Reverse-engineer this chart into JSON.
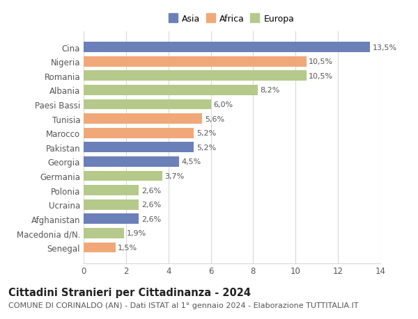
{
  "categories": [
    "Cina",
    "Nigeria",
    "Romania",
    "Albania",
    "Paesi Bassi",
    "Tunisia",
    "Marocco",
    "Pakistan",
    "Georgia",
    "Germania",
    "Polonia",
    "Ucraina",
    "Afghanistan",
    "Macedonia d/N.",
    "Senegal"
  ],
  "values": [
    13.5,
    10.5,
    10.5,
    8.2,
    6.0,
    5.6,
    5.2,
    5.2,
    4.5,
    3.7,
    2.6,
    2.6,
    2.6,
    1.9,
    1.5
  ],
  "labels": [
    "13,5%",
    "10,5%",
    "10,5%",
    "8,2%",
    "6,0%",
    "5,6%",
    "5,2%",
    "5,2%",
    "4,5%",
    "3,7%",
    "2,6%",
    "2,6%",
    "2,6%",
    "1,9%",
    "1,5%"
  ],
  "colors": [
    "#6b80b8",
    "#f0a878",
    "#b5c98a",
    "#b5c98a",
    "#b5c98a",
    "#f0a878",
    "#f0a878",
    "#6b80b8",
    "#6b80b8",
    "#b5c98a",
    "#b5c98a",
    "#b5c98a",
    "#6b80b8",
    "#b5c98a",
    "#f0a878"
  ],
  "legend_labels": [
    "Asia",
    "Africa",
    "Europa"
  ],
  "legend_colors": [
    "#6b80b8",
    "#f0a878",
    "#b5c98a"
  ],
  "title": "Cittadini Stranieri per Cittadinanza - 2024",
  "subtitle": "COMUNE DI CORINALDO (AN) - Dati ISTAT al 1° gennaio 2024 - Elaborazione TUTTITALIA.IT",
  "xlim": [
    0,
    14
  ],
  "xticks": [
    0,
    2,
    4,
    6,
    8,
    10,
    12,
    14
  ],
  "background_color": "#ffffff",
  "grid_color": "#d8d8d8",
  "bar_height": 0.72,
  "title_fontsize": 10.5,
  "subtitle_fontsize": 8.0,
  "label_fontsize": 8.0,
  "tick_fontsize": 8.5,
  "legend_fontsize": 9.0
}
